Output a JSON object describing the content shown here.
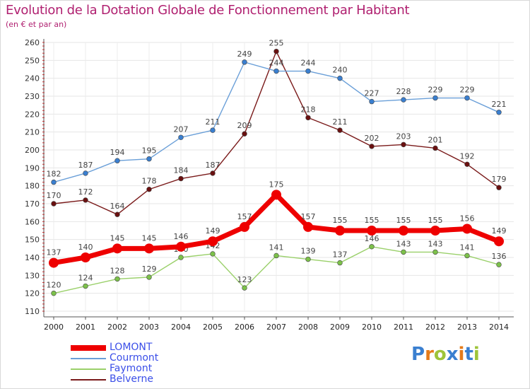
{
  "title": "Evolution de la Dotation Globale de Fonctionnement par Habitant",
  "subtitle": "(en € et par an)",
  "logo": {
    "text": "Proxiti",
    "letters": [
      "P",
      "r",
      "o",
      "x",
      "i",
      "t",
      "i"
    ],
    "letter_colors": [
      "#3a7fd0",
      "#e57b1a",
      "#9ec43a",
      "#3a7fd0",
      "#e57b1a",
      "#3a7fd0",
      "#9ec43a"
    ]
  },
  "chart_data": {
    "type": "line",
    "title": "Evolution de la Dotation Globale de Fonctionnement par Habitant",
    "subtitle": "(en € et par an)",
    "xlabel": "",
    "ylabel": "",
    "x": [
      "2000",
      "2001",
      "2002",
      "2003",
      "2004",
      "2005",
      "2006",
      "2007",
      "2008",
      "2009",
      "2010",
      "2011",
      "2012",
      "2013",
      "2014"
    ],
    "ylim": [
      110,
      260
    ],
    "yticks": [
      110,
      120,
      130,
      140,
      150,
      160,
      170,
      180,
      190,
      200,
      210,
      220,
      230,
      240,
      250,
      260
    ],
    "grid": true,
    "legend_position": "bottom-left",
    "series": [
      {
        "name": "Belverne",
        "color": "#7a1a1a",
        "marker_color": "#6a1010",
        "values": [
          170,
          172,
          164,
          178,
          184,
          187,
          209,
          255,
          218,
          211,
          202,
          203,
          201,
          192,
          179
        ]
      },
      {
        "name": "Courmont",
        "color": "#6a9fd8",
        "marker_color": "#3a7fd0",
        "values": [
          182,
          187,
          194,
          195,
          207,
          211,
          249,
          244,
          244,
          240,
          227,
          228,
          229,
          229,
          221
        ]
      },
      {
        "name": "Faymont",
        "color": "#9ad06a",
        "marker_color": "#7cc14a",
        "values": [
          120,
          124,
          128,
          129,
          140,
          142,
          123,
          141,
          139,
          137,
          146,
          143,
          143,
          141,
          136
        ]
      },
      {
        "name": "LOMONT",
        "color": "#ee0000",
        "marker_color": "#ee0000",
        "values": [
          137,
          140,
          145,
          145,
          146,
          149,
          157,
          175,
          157,
          155,
          155,
          155,
          155,
          156,
          149
        ]
      }
    ],
    "legend": [
      "LOMONT",
      "Courmont",
      "Faymont",
      "Belverne"
    ]
  }
}
